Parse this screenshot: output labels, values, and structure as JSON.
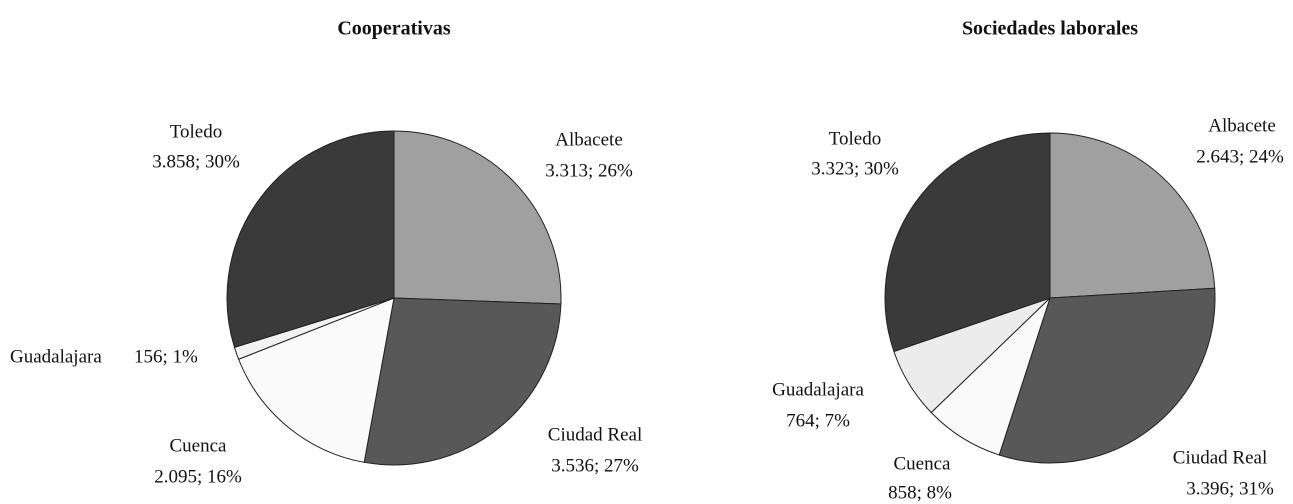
{
  "chart_data": [
    {
      "type": "pie",
      "title": "Cooperativas",
      "categories": [
        "Albacete",
        "Ciudad Real",
        "Cuenca",
        "Guadalajara",
        "Toledo"
      ],
      "values": [
        3313,
        3536,
        2095,
        156,
        3858
      ],
      "value_labels": [
        "3.313; 26%",
        "3.536; 27%",
        "2.095; 16%",
        "156; 1%",
        "3.858; 30%"
      ],
      "colors": [
        "#a0a0a0",
        "#585858",
        "#fafafa",
        "#f2f2f2",
        "#3a3a3a"
      ]
    },
    {
      "type": "pie",
      "title": "Sociedades laborales",
      "categories": [
        "Albacete",
        "Ciudad Real",
        "Cuenca",
        "Guadalajara",
        "Toledo"
      ],
      "values": [
        2643,
        3396,
        858,
        764,
        3323
      ],
      "value_labels": [
        "2.643; 24%",
        "3.396; 31%",
        "858; 8%",
        "764; 7%",
        "3.323; 30%"
      ],
      "colors": [
        "#a0a0a0",
        "#585858",
        "#fafafa",
        "#ececec",
        "#3a3a3a"
      ]
    }
  ]
}
